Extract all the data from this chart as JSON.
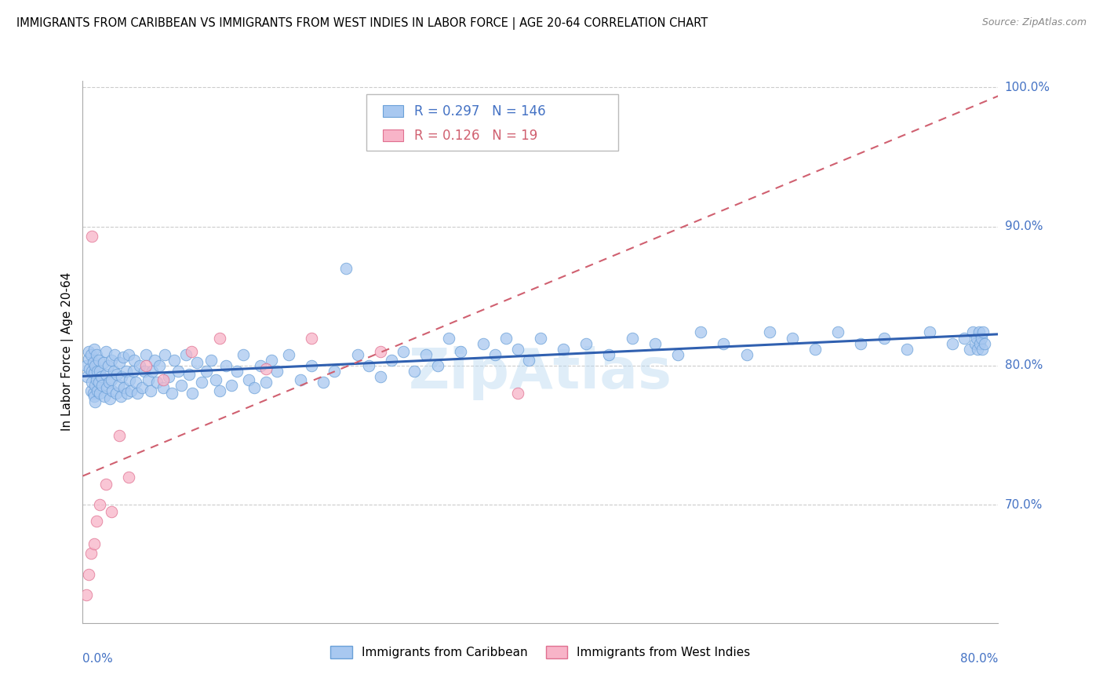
{
  "title": "IMMIGRANTS FROM CARIBBEAN VS IMMIGRANTS FROM WEST INDIES IN LABOR FORCE | AGE 20-64 CORRELATION CHART",
  "source": "Source: ZipAtlas.com",
  "ylabel": "In Labor Force | Age 20-64",
  "series1_color": "#a8c8f0",
  "series1_edge": "#6aa0d8",
  "series2_color": "#f8b4c8",
  "series2_edge": "#e07090",
  "trendline1_color": "#3060b0",
  "trendline2_color": "#d06070",
  "legend_r1": "0.297",
  "legend_n1": "146",
  "legend_r2": "0.126",
  "legend_n2": "19",
  "watermark": "ZipAtlas",
  "xlim": [
    0.0,
    0.8
  ],
  "ylim": [
    0.615,
    1.005
  ],
  "ytick_values": [
    0.7,
    0.8,
    0.9,
    1.0
  ],
  "ytick_labels": [
    "70.0%",
    "80.0%",
    "90.0%",
    "100.0%"
  ],
  "blue_x": [
    0.003,
    0.004,
    0.005,
    0.005,
    0.006,
    0.007,
    0.007,
    0.008,
    0.008,
    0.009,
    0.009,
    0.01,
    0.01,
    0.01,
    0.011,
    0.011,
    0.011,
    0.012,
    0.012,
    0.013,
    0.013,
    0.014,
    0.014,
    0.015,
    0.015,
    0.016,
    0.017,
    0.018,
    0.019,
    0.02,
    0.02,
    0.021,
    0.022,
    0.023,
    0.024,
    0.025,
    0.025,
    0.026,
    0.027,
    0.028,
    0.029,
    0.03,
    0.031,
    0.032,
    0.033,
    0.034,
    0.035,
    0.036,
    0.038,
    0.039,
    0.04,
    0.041,
    0.042,
    0.044,
    0.045,
    0.046,
    0.048,
    0.05,
    0.052,
    0.054,
    0.055,
    0.057,
    0.059,
    0.061,
    0.063,
    0.065,
    0.067,
    0.07,
    0.072,
    0.075,
    0.078,
    0.08,
    0.083,
    0.086,
    0.09,
    0.093,
    0.096,
    0.1,
    0.104,
    0.108,
    0.112,
    0.116,
    0.12,
    0.125,
    0.13,
    0.135,
    0.14,
    0.145,
    0.15,
    0.155,
    0.16,
    0.165,
    0.17,
    0.18,
    0.19,
    0.2,
    0.21,
    0.22,
    0.23,
    0.24,
    0.25,
    0.26,
    0.27,
    0.28,
    0.29,
    0.3,
    0.31,
    0.32,
    0.33,
    0.35,
    0.36,
    0.37,
    0.38,
    0.39,
    0.4,
    0.42,
    0.44,
    0.46,
    0.48,
    0.5,
    0.52,
    0.54,
    0.56,
    0.58,
    0.6,
    0.62,
    0.64,
    0.66,
    0.68,
    0.7,
    0.72,
    0.74,
    0.76,
    0.77,
    0.775,
    0.778,
    0.78,
    0.781,
    0.782,
    0.783,
    0.784,
    0.785,
    0.786,
    0.787,
    0.788
  ],
  "blue_y": [
    0.8,
    0.792,
    0.805,
    0.81,
    0.798,
    0.782,
    0.808,
    0.788,
    0.796,
    0.78,
    0.802,
    0.778,
    0.795,
    0.812,
    0.786,
    0.8,
    0.774,
    0.79,
    0.808,
    0.782,
    0.796,
    0.788,
    0.804,
    0.78,
    0.796,
    0.792,
    0.786,
    0.802,
    0.778,
    0.794,
    0.81,
    0.784,
    0.8,
    0.788,
    0.776,
    0.804,
    0.79,
    0.782,
    0.796,
    0.808,
    0.78,
    0.794,
    0.786,
    0.802,
    0.778,
    0.792,
    0.806,
    0.784,
    0.796,
    0.78,
    0.808,
    0.79,
    0.782,
    0.796,
    0.804,
    0.788,
    0.78,
    0.8,
    0.784,
    0.796,
    0.808,
    0.79,
    0.782,
    0.796,
    0.804,
    0.788,
    0.8,
    0.784,
    0.808,
    0.792,
    0.78,
    0.804,
    0.796,
    0.786,
    0.808,
    0.794,
    0.78,
    0.802,
    0.788,
    0.796,
    0.804,
    0.79,
    0.782,
    0.8,
    0.786,
    0.796,
    0.808,
    0.79,
    0.784,
    0.8,
    0.788,
    0.804,
    0.796,
    0.808,
    0.79,
    0.8,
    0.788,
    0.796,
    0.87,
    0.808,
    0.8,
    0.792,
    0.804,
    0.81,
    0.796,
    0.808,
    0.8,
    0.82,
    0.81,
    0.816,
    0.808,
    0.82,
    0.812,
    0.804,
    0.82,
    0.812,
    0.816,
    0.808,
    0.82,
    0.816,
    0.808,
    0.824,
    0.816,
    0.808,
    0.824,
    0.82,
    0.812,
    0.824,
    0.816,
    0.82,
    0.812,
    0.824,
    0.816,
    0.82,
    0.812,
    0.824,
    0.816,
    0.82,
    0.812,
    0.824,
    0.816,
    0.82,
    0.812,
    0.824,
    0.816
  ],
  "pink_x": [
    0.003,
    0.005,
    0.007,
    0.008,
    0.01,
    0.012,
    0.015,
    0.02,
    0.025,
    0.032,
    0.04,
    0.055,
    0.07,
    0.095,
    0.12,
    0.16,
    0.2,
    0.26,
    0.38
  ],
  "pink_y": [
    0.635,
    0.65,
    0.665,
    0.893,
    0.672,
    0.688,
    0.7,
    0.715,
    0.695,
    0.75,
    0.72,
    0.8,
    0.79,
    0.81,
    0.82,
    0.798,
    0.82,
    0.81,
    0.78
  ]
}
